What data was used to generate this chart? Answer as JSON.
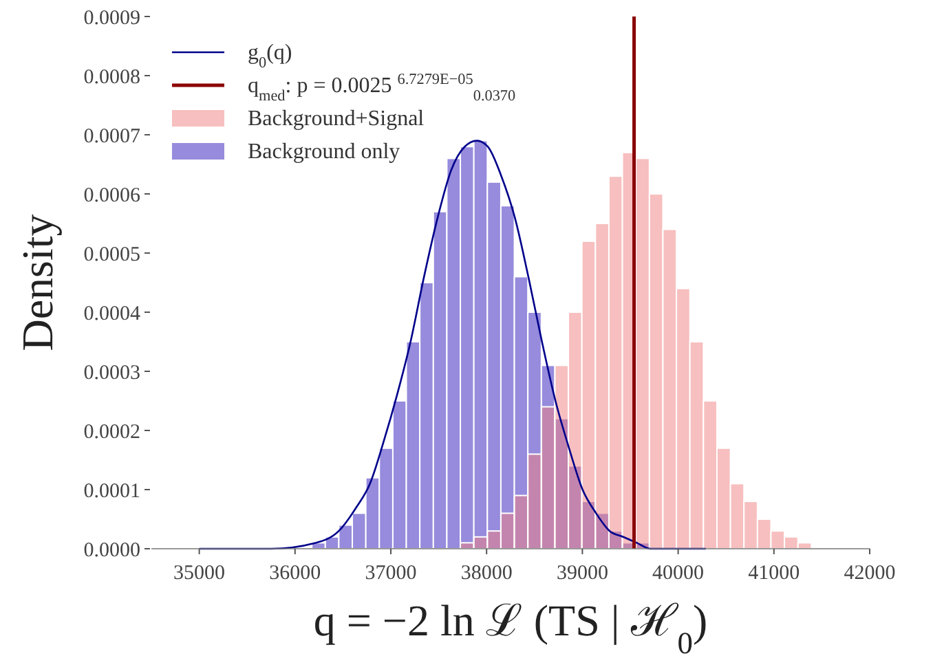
{
  "chart_data": {
    "type": "histogram",
    "xlabel": "q = −2 ln ℒ (TS | ℋ$_{0}$)",
    "ylabel": "Density",
    "xlim": [
      34500,
      42000
    ],
    "xticks": [
      35000,
      36000,
      37000,
      38000,
      39000,
      40000,
      41000,
      42000
    ],
    "ylim": [
      0,
      0.0009
    ],
    "yticks": [
      {
        "value": 0,
        "label": "0.0000"
      },
      {
        "value": 0.0001,
        "label": "0.0001"
      },
      {
        "value": 0.0002,
        "label": "0.0002"
      },
      {
        "value": 0.0003,
        "label": "0.0003"
      },
      {
        "value": 0.0004,
        "label": "0.0004"
      },
      {
        "value": 0.0005,
        "label": "0.0005"
      },
      {
        "value": 0.0006,
        "label": "0.0006"
      },
      {
        "value": 0.0007,
        "label": "0.0007"
      },
      {
        "value": 0.0008,
        "label": "0.0008"
      },
      {
        "value": 0.0009,
        "label": "0.0009"
      }
    ],
    "grid": false,
    "legend": "top left",
    "series": [
      {
        "type": "line",
        "name": "g$_{0}$(q)",
        "color": "#00008b",
        "x": [
          35000,
          35749,
          36216,
          36457,
          36640,
          36782,
          36923,
          37065,
          37206,
          37347,
          37489,
          37630,
          37772,
          37899,
          38012,
          38154,
          38295,
          38436,
          38578,
          38719,
          38861,
          39002,
          39143,
          39285,
          39426,
          39568,
          39709,
          39992,
          40289
        ],
        "values": [
          0,
          0,
          1e-05,
          3e-05,
          7e-05,
          0.00011,
          0.00018,
          0.00026,
          0.00035,
          0.00046,
          0.00056,
          0.00064,
          0.00068,
          0.00069,
          0.00068,
          0.00063,
          0.00056,
          0.00046,
          0.00035,
          0.00025,
          0.00017,
          0.0001,
          6e-05,
          3e-05,
          2e-05,
          1e-05,
          0,
          0,
          0
        ]
      },
      {
        "type": "line",
        "name": "q$_{med}$: p = 0.0025 $^{6.7279E−05}$$_{0.0370}$",
        "color": "#8b0000",
        "x": [
          39540,
          39540
        ],
        "values": [
          0,
          0.0009
        ]
      },
      {
        "name": "Background+Signal",
        "color": "#f08080",
        "bins": [
          37726,
          37867,
          38008,
          38149,
          38290,
          38431,
          38572,
          38713,
          38854,
          38995,
          39136,
          39277,
          39418,
          39559,
          39700,
          39841,
          39982,
          40123,
          40264,
          40405,
          40546,
          40687,
          40828,
          40969,
          41110,
          41251,
          41392,
          41533
        ],
        "values": [
          1e-05,
          2e-05,
          3e-05,
          6e-05,
          9e-05,
          0.00016,
          0.00024,
          0.00031,
          0.0004,
          0.00052,
          0.00055,
          0.00063,
          0.00067,
          0.00066,
          0.0006,
          0.00054,
          0.00044,
          0.00035,
          0.00025,
          0.00017,
          0.00011,
          8e-05,
          5e-05,
          3e-05,
          2e-05,
          1e-05,
          0
        ]
      },
      {
        "name": "Background only",
        "color": "#6a5acd",
        "bins": [
          36175,
          36316,
          36457,
          36598,
          36739,
          36880,
          37021,
          37162,
          37303,
          37444,
          37585,
          37726,
          37867,
          38008,
          38149,
          38290,
          38431,
          38572,
          38713,
          38854,
          38995,
          39136,
          39277,
          39418,
          39559,
          39700
        ],
        "values": [
          1e-05,
          2e-05,
          4e-05,
          6e-05,
          0.00012,
          0.00017,
          0.00025,
          0.00035,
          0.00045,
          0.00057,
          0.00066,
          0.00068,
          0.00069,
          0.00062,
          0.00058,
          0.00046,
          0.0004,
          0.00031,
          0.00022,
          0.00014,
          8e-05,
          6e-05,
          3e-05,
          1e-05,
          1e-05
        ]
      }
    ]
  }
}
